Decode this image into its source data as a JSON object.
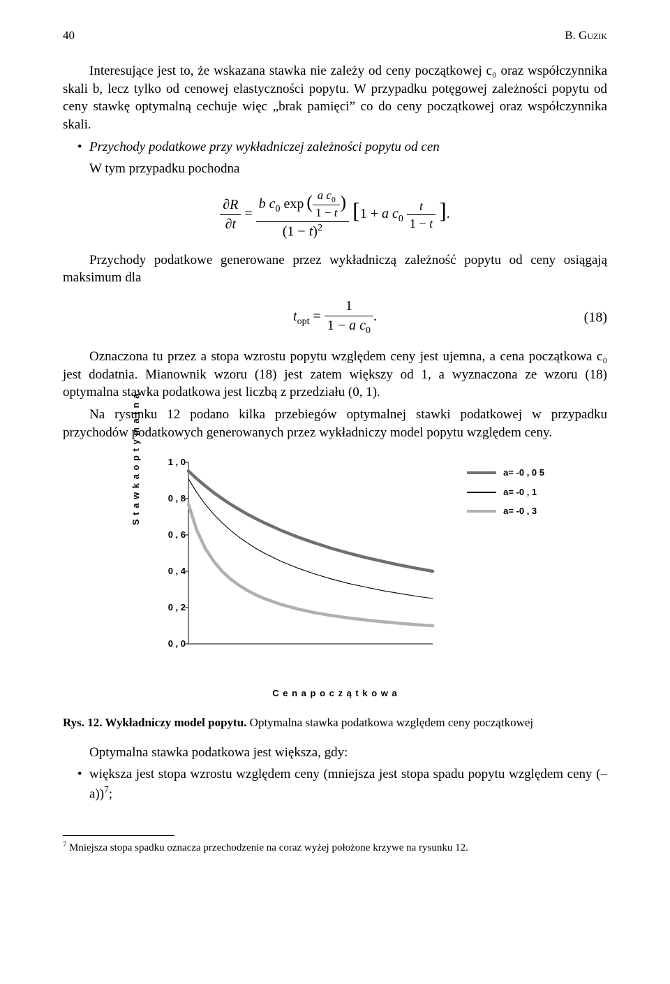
{
  "header": {
    "page_num": "40",
    "author": "B. Guzik"
  },
  "para1": "Interesujące jest to, że wskazana stawka nie zależy od ceny początkowej c₀ oraz współczynnika skali b, lecz tylko od cenowej elastyczności popytu. W przypadku potęgowej zależności popytu od ceny stawkę optymalną cechuje więc „brak pamięci” co do ceny początkowej oraz współczynnika skali.",
  "bullet1": "Przychody podatkowe przy wykładniczej zależności popytu od cen",
  "para2": "W tym przypadku pochodna",
  "para3": "Przychody podatkowe generowane przez wykładniczą zależność popytu od ceny osiągają maksimum dla",
  "eq_num": "(18)",
  "para4": "Oznaczona tu przez a stopa wzrostu popytu względem ceny jest ujemna, a cena początkowa c₀ jest dodatnia. Mianownik wzoru (18) jest zatem większy od 1, a wyznaczona ze wzoru (18) optymalna stawka podatkowa jest liczbą z przedziału (0, 1).",
  "para5": "Na rysunku 12 podano kilka przebiegów optymalnej stawki podatkowej w przypadku przychodów podatkowych generowanych przez wykładniczy model popytu względem ceny.",
  "chart": {
    "type": "line",
    "y_label": "S t a w k a   o p t y m a l n a",
    "x_label": "C e n a   p o c z ą t k o w a",
    "ylim": [
      0.0,
      1.0
    ],
    "yticks": [
      "0 , 0",
      "0 , 2",
      "0 , 4",
      "0 , 6",
      "0 , 8",
      "1 , 0"
    ],
    "x_domain": [
      1,
      30
    ],
    "background_color": "#ffffff",
    "series": [
      {
        "label": "a=  -0 , 0 5",
        "color": "#707070",
        "width": 4.5,
        "x": [
          1,
          2,
          3,
          4,
          5,
          6,
          7,
          8,
          9,
          10,
          12,
          14,
          16,
          18,
          20,
          22,
          24,
          26,
          28,
          30
        ],
        "y": [
          0.952,
          0.909,
          0.87,
          0.833,
          0.8,
          0.769,
          0.741,
          0.714,
          0.69,
          0.667,
          0.625,
          0.588,
          0.556,
          0.526,
          0.5,
          0.476,
          0.455,
          0.435,
          0.417,
          0.4
        ]
      },
      {
        "label": "a=  -0 , 1",
        "color": "#000000",
        "width": 1.1,
        "x": [
          1,
          2,
          3,
          4,
          5,
          6,
          7,
          8,
          9,
          10,
          12,
          14,
          16,
          18,
          20,
          22,
          24,
          26,
          28,
          30
        ],
        "y": [
          0.909,
          0.833,
          0.769,
          0.714,
          0.667,
          0.625,
          0.588,
          0.556,
          0.526,
          0.5,
          0.455,
          0.417,
          0.385,
          0.357,
          0.333,
          0.313,
          0.294,
          0.278,
          0.263,
          0.25
        ]
      },
      {
        "label": "a=  -0 , 3",
        "color": "#b0b0b0",
        "width": 4.5,
        "x": [
          1,
          2,
          3,
          4,
          5,
          6,
          7,
          8,
          9,
          10,
          12,
          14,
          16,
          18,
          20,
          22,
          24,
          26,
          28,
          30
        ],
        "y": [
          0.769,
          0.625,
          0.526,
          0.455,
          0.4,
          0.357,
          0.323,
          0.294,
          0.27,
          0.25,
          0.217,
          0.192,
          0.172,
          0.156,
          0.143,
          0.132,
          0.122,
          0.114,
          0.106,
          0.1
        ]
      }
    ]
  },
  "caption_bold": "Rys. 12. Wykładniczy model popytu.",
  "caption_rest": " Optymalna stawka podatkowa względem ceny początkowej",
  "para6": "Optymalna stawka podatkowa jest większa, gdy:",
  "bullet2": "większa jest stopa wzrostu względem ceny (mniejsza jest stopa spadu popytu względem ceny (–a))",
  "footnote_mark": "7",
  "footnote": " Mniejsza stopa spadku oznacza przechodzenie na coraz wyżej położone krzywe na rysunku 12."
}
